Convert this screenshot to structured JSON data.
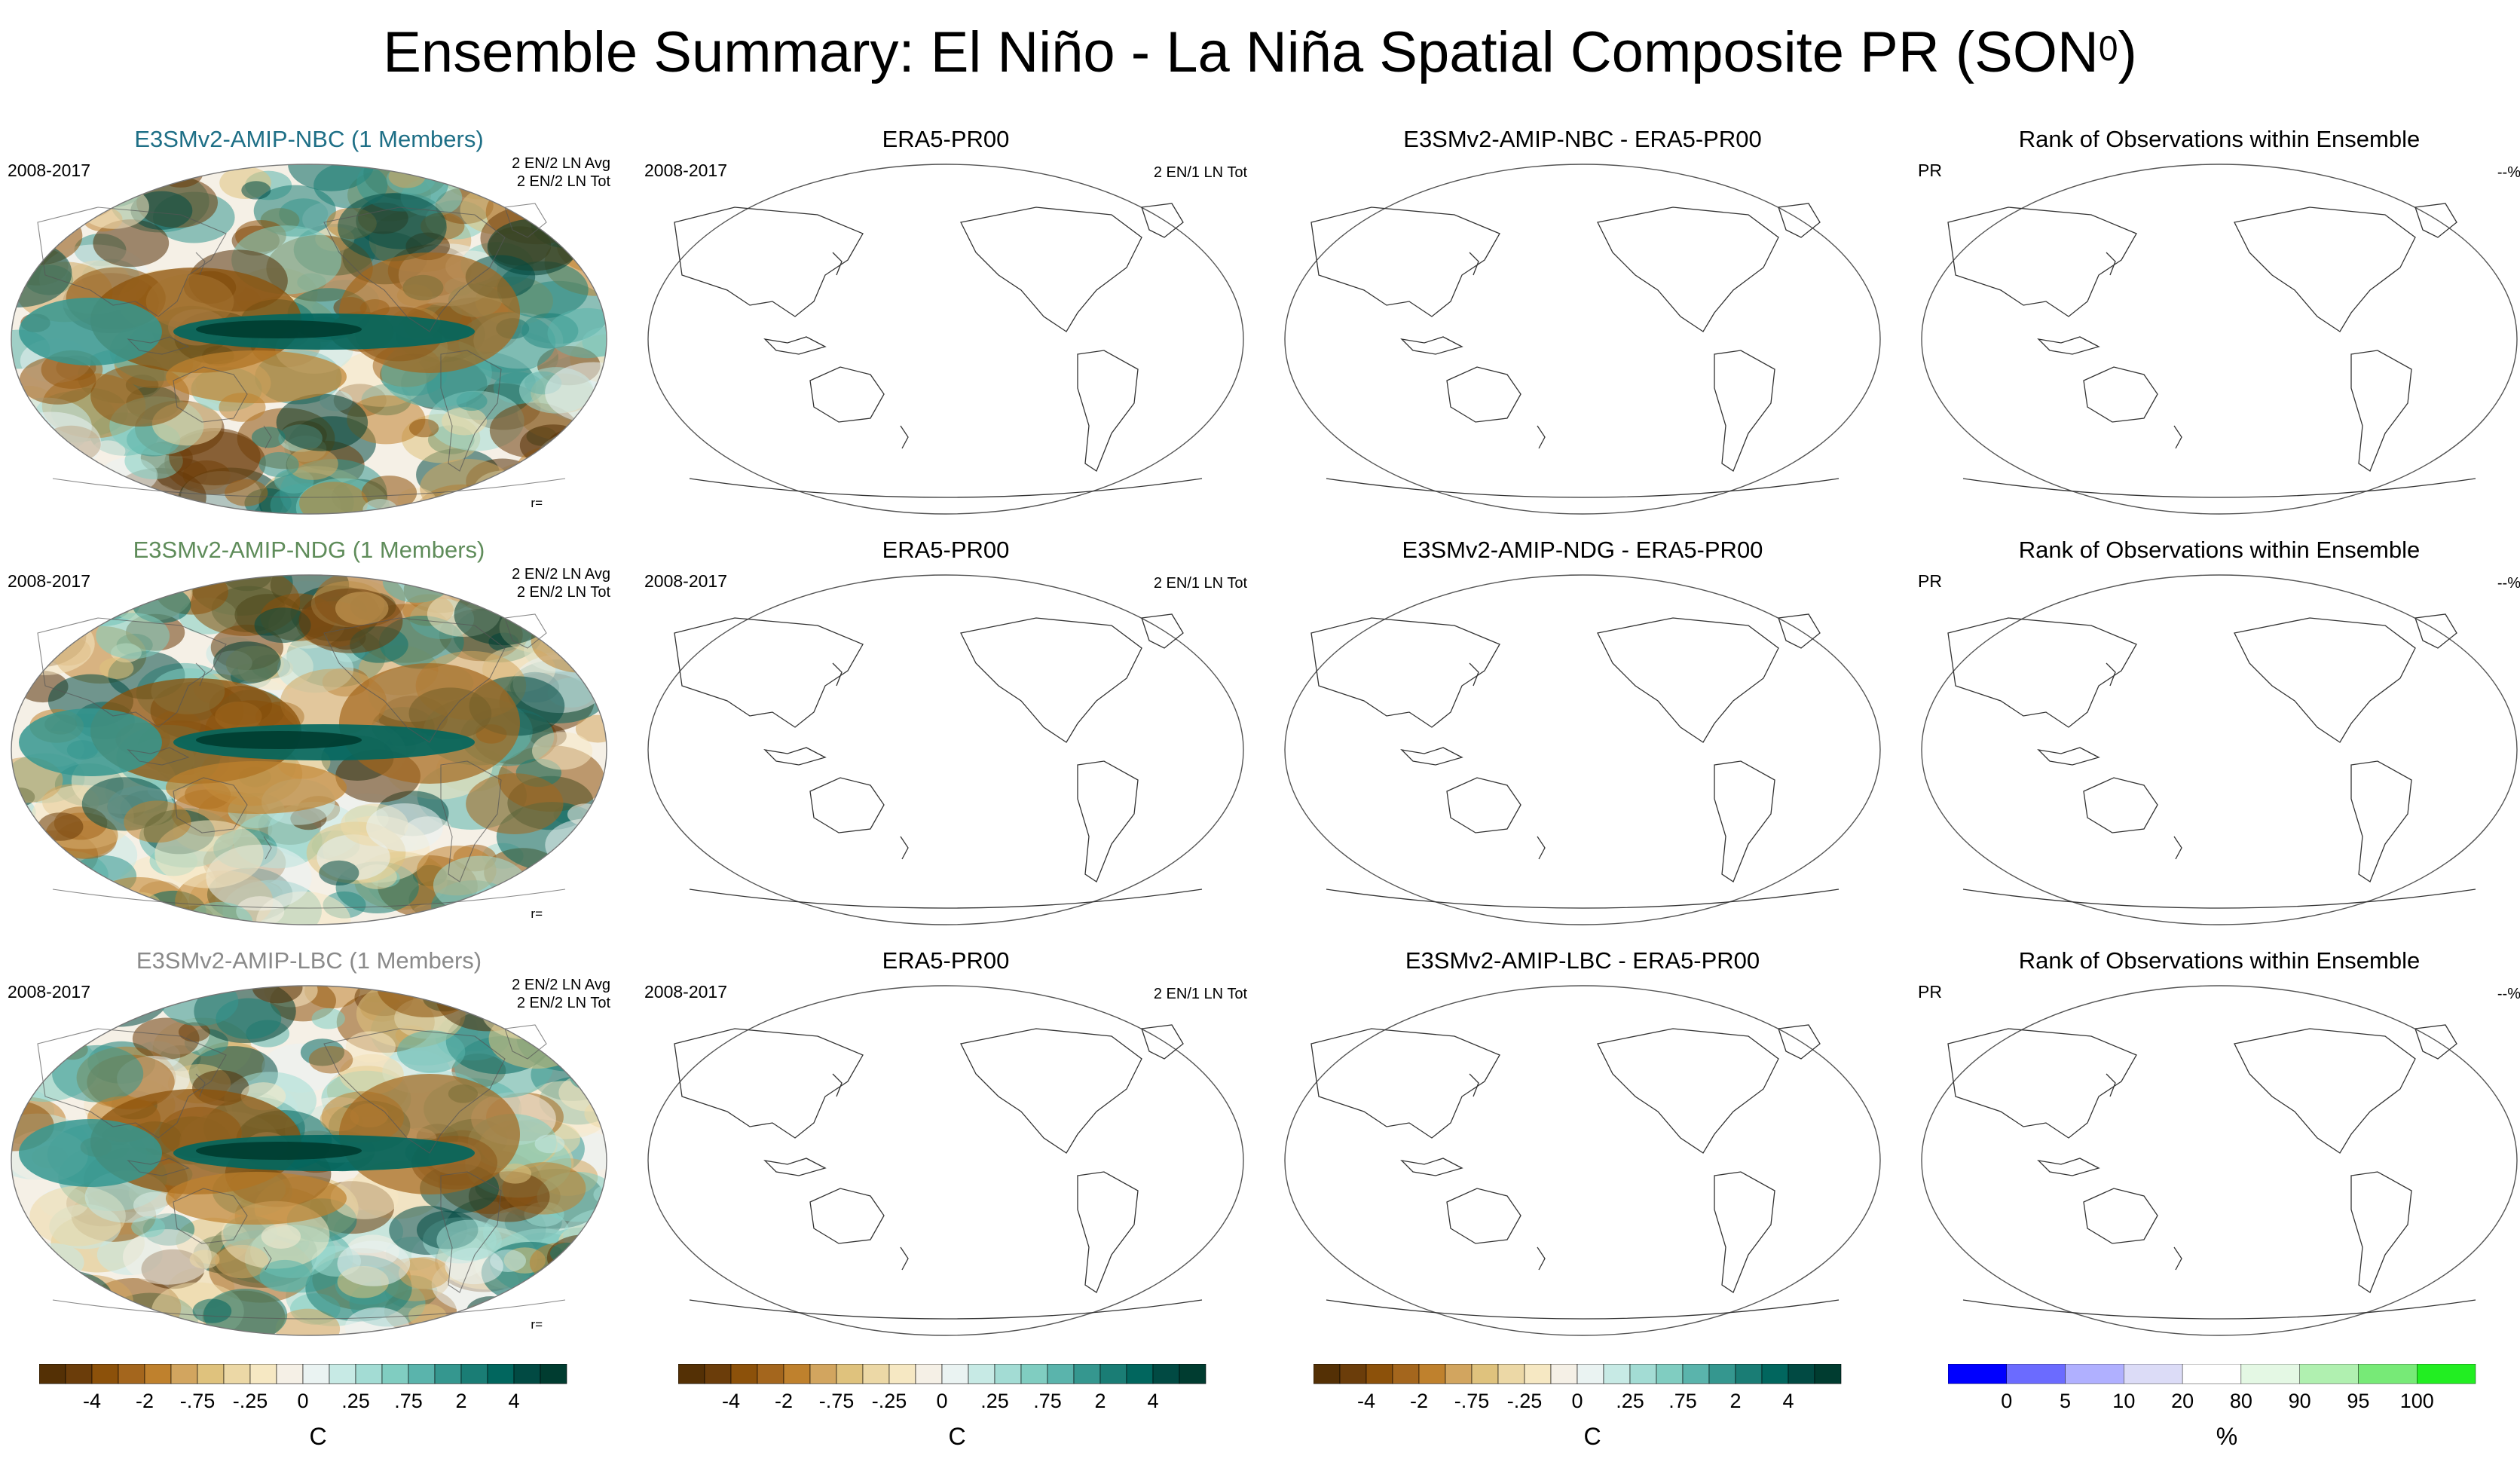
{
  "title": {
    "main": "Ensemble Summary: El Niño - La Niña Spatial Composite PR (SON",
    "sup": "0",
    "close": ")"
  },
  "rows": [
    {
      "model_title": "E3SMv2-AMIP-NBC (1 Members)",
      "model_color": "#1e6f86",
      "period": "2008-2017",
      "avg_text": "2 EN/2 LN Avg",
      "tot_text": "2 EN/2 LN Tot",
      "r_label": "r=",
      "obs_title": "ERA5-PR00",
      "obs_period": "2008-2017",
      "obs_count": "2 EN/1 LN Tot",
      "diff_title": "E3SMv2-AMIP-NBC - ERA5-PR00",
      "rank_title": "Rank of Observations within Ensemble",
      "rank_var": "PR",
      "rank_pct": "--%"
    },
    {
      "model_title": "E3SMv2-AMIP-NDG (1 Members)",
      "model_color": "#5f8c5a",
      "period": "2008-2017",
      "avg_text": "2 EN/2 LN Avg",
      "tot_text": "2 EN/2 LN Tot",
      "r_label": "r=",
      "obs_title": "ERA5-PR00",
      "obs_period": "2008-2017",
      "obs_count": "2 EN/1 LN Tot",
      "diff_title": "E3SMv2-AMIP-NDG - ERA5-PR00",
      "rank_title": "Rank of Observations within Ensemble",
      "rank_var": "PR",
      "rank_pct": "--%"
    },
    {
      "model_title": "E3SMv2-AMIP-LBC (1 Members)",
      "model_color": "#8a8a8a",
      "period": "2008-2017",
      "avg_text": "2 EN/2 LN Avg",
      "tot_text": "2 EN/2 LN Tot",
      "r_label": "r=",
      "obs_title": "ERA5-PR00",
      "obs_period": "2008-2017",
      "obs_count": "2 EN/1 LN Tot",
      "diff_title": "E3SMv2-AMIP-LBC - ERA5-PR00",
      "rank_title": "Rank of Observations within Ensemble",
      "rank_var": "PR",
      "rank_pct": "--%"
    }
  ],
  "chart_data": {
    "type": "heatmap",
    "description_of_panels": "3 rows x 4 columns of Robinson-projection world maps; column 1 shows model composite anomaly fields, columns 2-4 are blank maps (coastlines only)",
    "anomaly_colorbar": {
      "tick_labels": [
        "-4",
        "-2",
        "-.75",
        "-.25",
        "0",
        ".25",
        ".75",
        "2",
        "4"
      ],
      "unit": "C",
      "colors": [
        "#543005",
        "#6b3d0a",
        "#8c510a",
        "#a4661d",
        "#bf812d",
        "#d2a55f",
        "#dfc27d",
        "#ecd8a6",
        "#f6e8c3",
        "#f5f0e6",
        "#eaf3f2",
        "#c7eae5",
        "#a3dcd4",
        "#80cdc1",
        "#5ab4ac",
        "#35978f",
        "#1a7d75",
        "#01665e",
        "#014a43",
        "#003c30"
      ]
    },
    "rank_colorbar": {
      "tick_labels": [
        "0",
        "5",
        "10",
        "20",
        "80",
        "90",
        "95",
        "100"
      ],
      "unit": "%",
      "boundaries": [
        0,
        5,
        10,
        20,
        80,
        90,
        95,
        100
      ],
      "colors": [
        "#0000ff",
        "#6b6bff",
        "#b0b0ff",
        "#dcdcf7",
        "#ffffff",
        "#e4f8e4",
        "#b0f0b0",
        "#77ea77",
        "#22ee22"
      ]
    }
  }
}
